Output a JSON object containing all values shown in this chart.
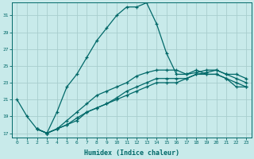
{
  "xlabel": "Humidex (Indice chaleur)",
  "bg_color": "#c8eaea",
  "grid_color": "#a8cece",
  "line_color": "#006868",
  "ylim": [
    16.5,
    32.5
  ],
  "xlim": [
    -0.5,
    23.5
  ],
  "yticks": [
    17,
    19,
    21,
    23,
    25,
    27,
    29,
    31
  ],
  "xticks": [
    0,
    1,
    2,
    3,
    4,
    5,
    6,
    7,
    8,
    9,
    10,
    11,
    12,
    13,
    14,
    15,
    16,
    17,
    18,
    19,
    20,
    21,
    22,
    23
  ],
  "line1_x": [
    0,
    1,
    2,
    3,
    4,
    5,
    6,
    7,
    8,
    9,
    10,
    11,
    12,
    13,
    14,
    15,
    16,
    17,
    18,
    19,
    20,
    21,
    22,
    23
  ],
  "line1_y": [
    21,
    19,
    17.5,
    17,
    19.5,
    22.5,
    24,
    26,
    28,
    29.5,
    31,
    32,
    32,
    32.5,
    30,
    26.5,
    24,
    24,
    24.5,
    24,
    24,
    23.5,
    22.5,
    22.5
  ],
  "line2_x": [
    2,
    3,
    4,
    5,
    6,
    7,
    8,
    9,
    10,
    11,
    12,
    13,
    14,
    15,
    16,
    17,
    18,
    19,
    20,
    21,
    22,
    23
  ],
  "line2_y": [
    17.5,
    17,
    17.5,
    18,
    18.5,
    19.5,
    20,
    20.5,
    21,
    21.5,
    22,
    22.5,
    23,
    23,
    23,
    23.5,
    24,
    24,
    24,
    23.5,
    23,
    22.5
  ],
  "line3_x": [
    2,
    3,
    4,
    5,
    6,
    7,
    8,
    9,
    10,
    11,
    12,
    13,
    14,
    15,
    16,
    17,
    18,
    19,
    20,
    21,
    22,
    23
  ],
  "line3_y": [
    17.5,
    17,
    17.5,
    18,
    18.8,
    19.5,
    20,
    20.5,
    21.2,
    22,
    22.5,
    23,
    23.5,
    23.5,
    23.5,
    23.5,
    24,
    24.2,
    24.5,
    24,
    23.5,
    23
  ],
  "line4_x": [
    2,
    3,
    4,
    5,
    6,
    7,
    8,
    9,
    10,
    11,
    12,
    13,
    14,
    15,
    16,
    17,
    18,
    19,
    20,
    21,
    22,
    23
  ],
  "line4_y": [
    17.5,
    17,
    17.5,
    18.5,
    19.5,
    20.5,
    21.5,
    22,
    22.5,
    23,
    23.8,
    24.2,
    24.5,
    24.5,
    24.5,
    24,
    24.2,
    24.5,
    24.5,
    24,
    24,
    23.5
  ]
}
